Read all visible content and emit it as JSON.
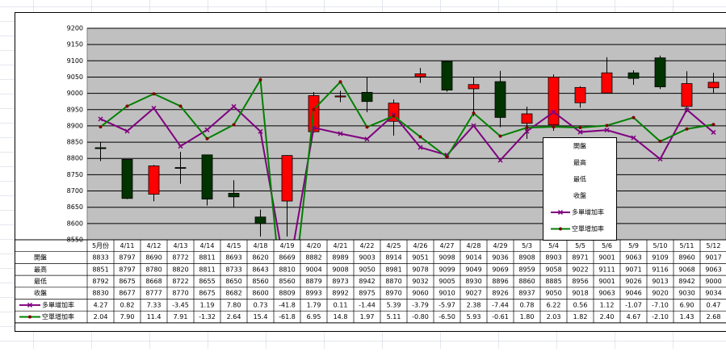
{
  "chart_data": {
    "type": "candlestick",
    "categories": [
      "5月份",
      "4/11",
      "4/12",
      "4/13",
      "4/14",
      "4/15",
      "4/18",
      "4/19",
      "4/20",
      "4/21",
      "4/22",
      "4/25",
      "4/26",
      "4/27",
      "4/28",
      "4/29",
      "5/3",
      "5/4",
      "5/5",
      "5/6",
      "5/9",
      "5/10",
      "5/11",
      "5/12"
    ],
    "series": [
      {
        "name": "開盤",
        "values": [
          8833,
          8797,
          8690,
          8772,
          8811,
          8693,
          8620,
          8669,
          8882,
          8989,
          9003,
          8914,
          9051,
          9098,
          9014,
          9036,
          8908,
          8903,
          8971,
          9001,
          9063,
          9109,
          8960,
          9017
        ]
      },
      {
        "name": "最高",
        "values": [
          8851,
          8797,
          8780,
          8820,
          8811,
          8733,
          8643,
          8810,
          9004,
          9008,
          9050,
          8981,
          9078,
          9099,
          9049,
          9069,
          8959,
          9058,
          9022,
          9111,
          9071,
          9116,
          9068,
          9063
        ]
      },
      {
        "name": "最低",
        "values": [
          8792,
          8675,
          8668,
          8722,
          8655,
          8650,
          8560,
          8560,
          8879,
          8973,
          8942,
          8870,
          9032,
          9005,
          8930,
          8896,
          8860,
          8885,
          8956,
          9001,
          9026,
          9013,
          8942,
          9000
        ]
      },
      {
        "name": "收盤",
        "values": [
          8830,
          8677,
          8777,
          8770,
          8675,
          8682,
          8600,
          8809,
          8993,
          8992,
          8975,
          8970,
          9060,
          9010,
          9027,
          8926,
          8937,
          9050,
          9018,
          9063,
          9046,
          9020,
          9030,
          9034
        ]
      },
      {
        "name": "多單增加率",
        "color": "#800080",
        "axis": "y2",
        "values": [
          4.27,
          0.82,
          7.33,
          -3.45,
          1.19,
          7.8,
          0.73,
          -41.8,
          1.79,
          0.11,
          -1.44,
          5.39,
          -3.79,
          -5.97,
          2.38,
          -7.44,
          0.78,
          6.22,
          0.56,
          1.12,
          -1.07,
          -7.1,
          6.9,
          0.47
        ],
        "value_labels": [
          "4.27",
          "0.82",
          "7.33",
          "-3.45",
          "1.19",
          "7.80",
          "0.73",
          "-41.8",
          "1.79",
          "0.11",
          "-1.44",
          "5.39",
          "-3.79",
          "-5.97",
          "2.38",
          "-7.44",
          "0.78",
          "6.22",
          "0.56",
          "1.12",
          "-1.07",
          "-7.10",
          "6.90",
          "0.47"
        ]
      },
      {
        "name": "空單增加率",
        "color": "#008000",
        "axis": "y2",
        "values": [
          2.04,
          7.9,
          11.4,
          7.91,
          -1.32,
          2.64,
          15.4,
          -61.8,
          6.95,
          14.8,
          1.97,
          5.11,
          -0.8,
          -6.5,
          5.93,
          -0.61,
          1.8,
          2.03,
          1.82,
          2.4,
          4.67,
          -2.1,
          1.43,
          2.68
        ],
        "value_labels": [
          "2.04",
          "7.90",
          "11.4",
          "7.91",
          "-1.32",
          "2.64",
          "15.4",
          "-61.8",
          "6.95",
          "14.8",
          "1.97",
          "5.11",
          "-0.80",
          "-6.50",
          "5.93",
          "-0.61",
          "1.80",
          "2.03",
          "1.82",
          "2.40",
          "4.67",
          "-2.10",
          "1.43",
          "2.68"
        ]
      }
    ],
    "up_color": "#ff0000",
    "down_color": "#003300",
    "ylim": [
      8550,
      9200
    ],
    "yticks": [
      8550,
      8600,
      8650,
      8700,
      8750,
      8800,
      8850,
      8900,
      8950,
      9000,
      9050,
      9100,
      9150,
      9200
    ],
    "y2lim": [
      -30,
      30
    ],
    "grid": true,
    "data_table": true
  }
}
